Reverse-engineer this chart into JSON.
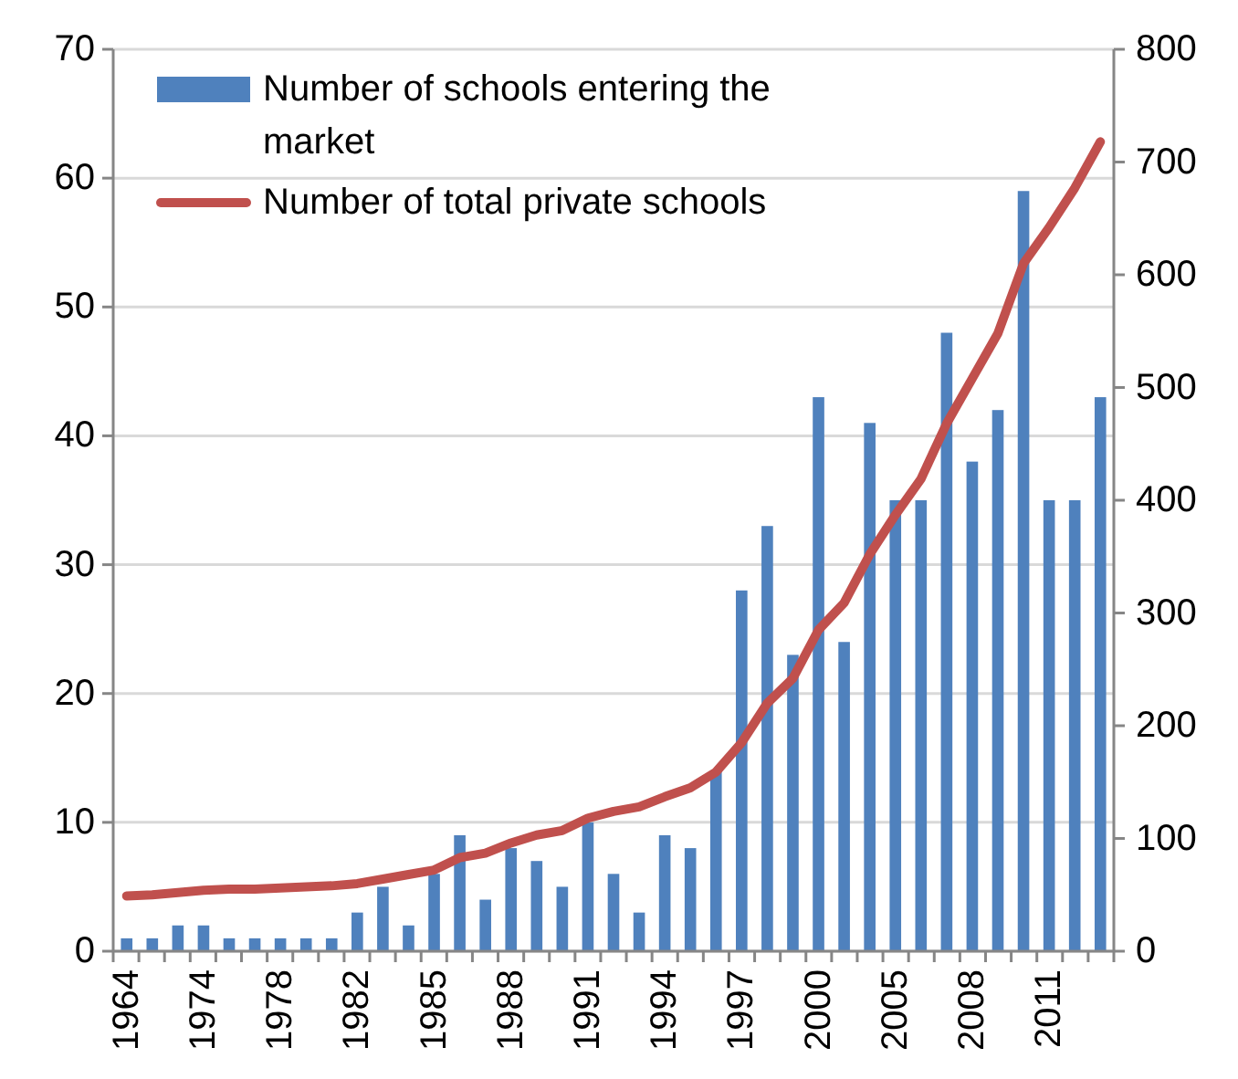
{
  "chart_data": {
    "type": "bar",
    "categories": [
      "1964",
      null,
      null,
      "1974",
      null,
      null,
      "1978",
      null,
      null,
      "1982",
      null,
      null,
      "1985",
      null,
      null,
      "1988",
      null,
      null,
      "1991",
      null,
      null,
      "1994",
      null,
      null,
      "1997",
      null,
      null,
      "2000",
      null,
      null,
      "2005",
      null,
      null,
      "2008",
      null,
      null,
      "2011",
      null,
      null
    ],
    "series": [
      {
        "name": "Number of schools entering the market",
        "color": "#4f81bd",
        "values": [
          1,
          1,
          2,
          2,
          1,
          1,
          1,
          1,
          1,
          3,
          5,
          2,
          6,
          9,
          4,
          8,
          7,
          5,
          10,
          6,
          3,
          9,
          8,
          14,
          28,
          33,
          23,
          43,
          24,
          41,
          35,
          35,
          48,
          38,
          42,
          59,
          35,
          35,
          43
        ]
      },
      {
        "name": "Number of total private schools",
        "color": "#c0504d",
        "type": "line",
        "axis": "y2",
        "values": [
          49,
          50,
          52,
          54,
          55,
          55,
          56,
          57,
          58,
          60,
          64,
          68,
          72,
          83,
          87,
          96,
          103,
          107,
          118,
          124,
          128,
          137,
          145,
          159,
          185,
          220,
          242,
          285,
          309,
          352,
          387,
          419,
          468,
          508,
          548,
          610,
          642,
          677,
          718
        ]
      }
    ],
    "ylim": [
      0,
      70
    ],
    "yticks": [
      0,
      10,
      20,
      30,
      40,
      50,
      60,
      70
    ],
    "y2lim": [
      0,
      800
    ],
    "y2ticks": [
      0,
      100,
      200,
      300,
      400,
      500,
      600,
      700,
      800
    ],
    "grid": "y",
    "legend": "top left"
  }
}
